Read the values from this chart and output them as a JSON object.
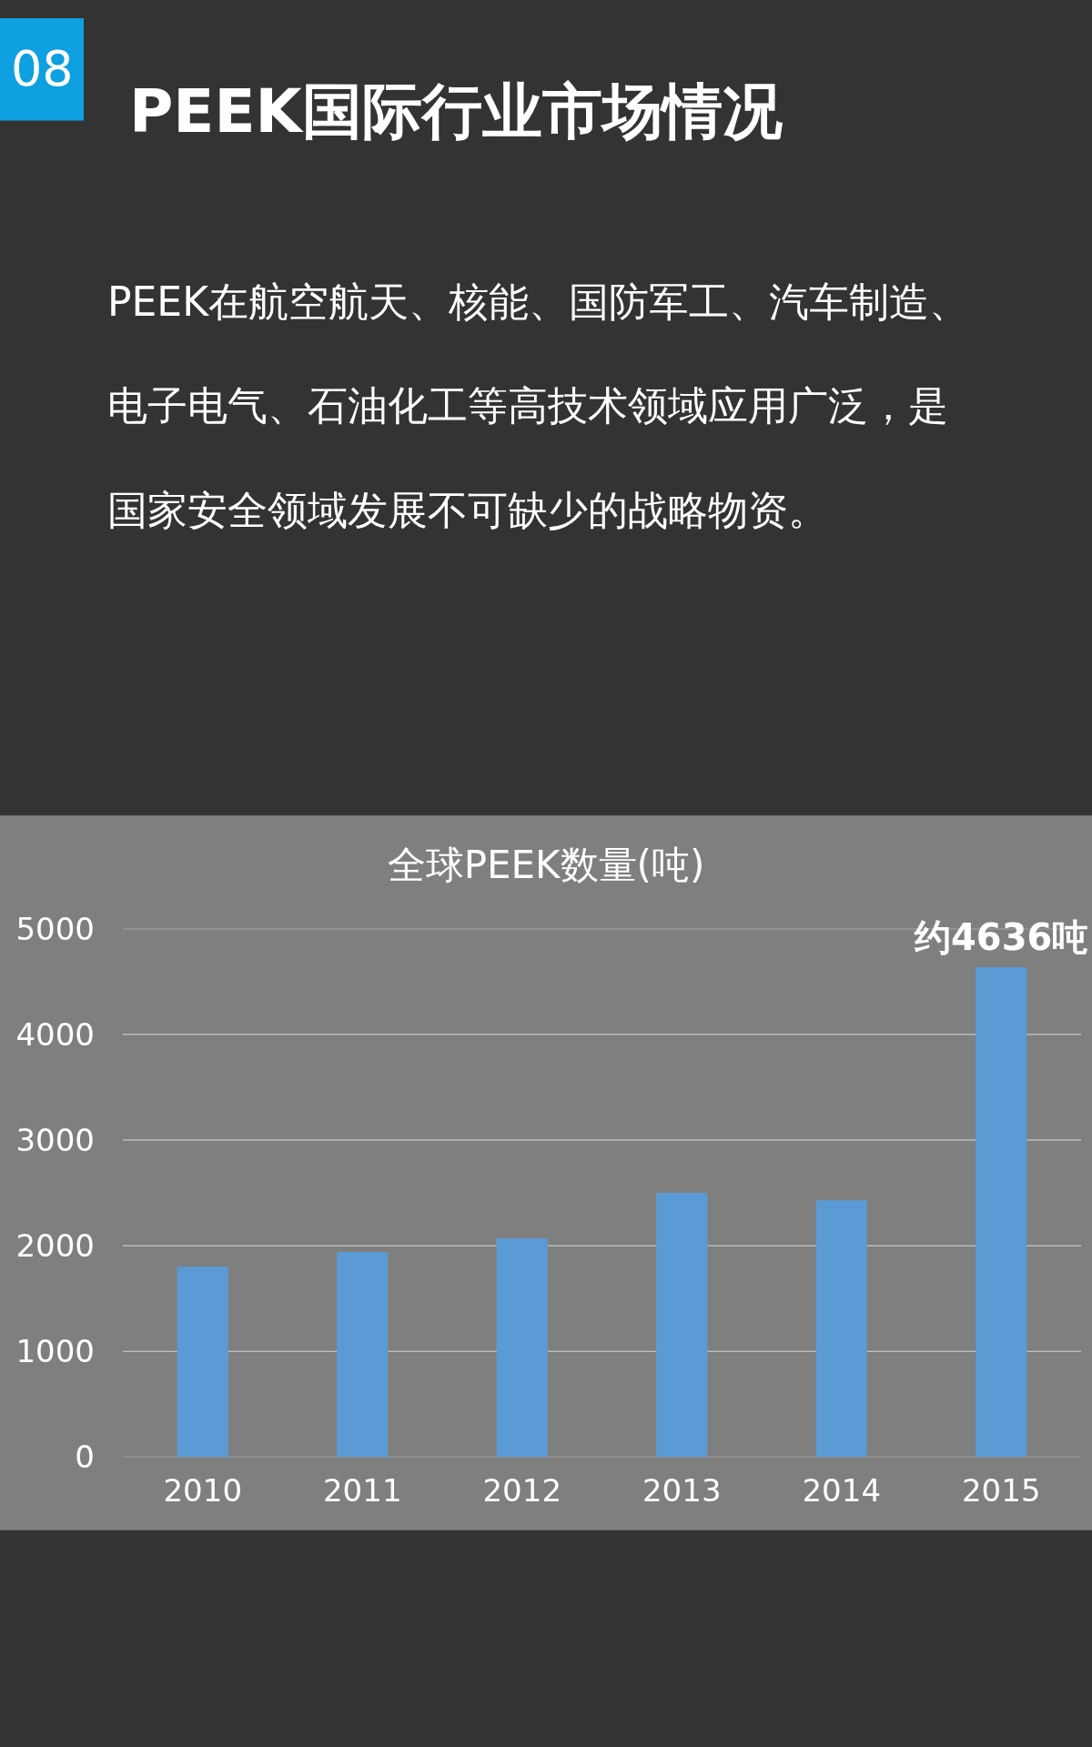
{
  "chart_data": {
    "type": "bar",
    "title": "全球PEEK数量(吨)",
    "categories": [
      "2010",
      "2011",
      "2012",
      "2013",
      "2014",
      "2015"
    ],
    "series": [
      {
        "color": "#5b9bd5",
        "values": [
          1800,
          1940,
          2070,
          2500,
          2430,
          4636
        ]
      }
    ],
    "ylim": [
      0,
      5000
    ],
    "yticks": [
      0,
      1000,
      2000,
      3000,
      4000,
      5000
    ],
    "grid": "y",
    "annotations": [
      "08",
      "PEEK国际行业市场情况",
      "PEEK在航空航天、核能、国防军工、汽车制造、电子电气、石油化工等高技术领域应用广泛，是国家安全领域发展不可缺少的战略物资。",
      {
        "text": "约4636吨",
        "x": "2015",
        "y": 4636
      }
    ]
  }
}
